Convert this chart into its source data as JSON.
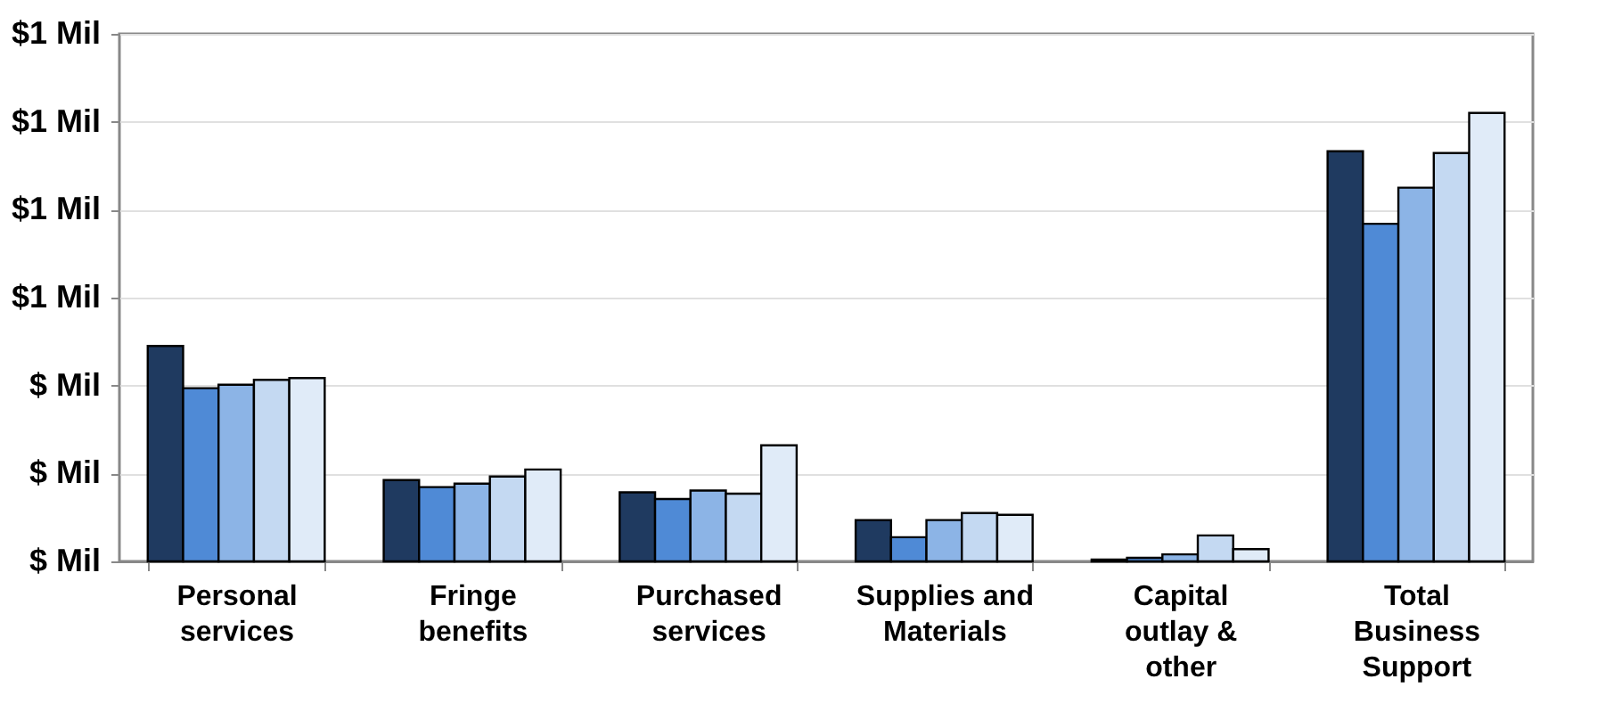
{
  "chart_data": {
    "type": "bar",
    "categories": [
      "Personal services",
      "Fringe benefits",
      "Purchased services",
      "Supplies and Materials",
      "Capital outlay & other",
      "Total Business Support"
    ],
    "series": [
      {
        "color": "#1f3a60",
        "values": [
          0.49,
          0.185,
          0.157,
          0.094,
          0.004,
          0.933
        ]
      },
      {
        "color": "#4f8ad6",
        "values": [
          0.394,
          0.169,
          0.142,
          0.055,
          0.008,
          0.768
        ]
      },
      {
        "color": "#8cb4e6",
        "values": [
          0.402,
          0.177,
          0.161,
          0.094,
          0.016,
          0.85
        ]
      },
      {
        "color": "#c4d9f2",
        "values": [
          0.413,
          0.193,
          0.154,
          0.11,
          0.059,
          0.929
        ]
      },
      {
        "color": "#e0ebf8",
        "values": [
          0.417,
          0.209,
          0.264,
          0.106,
          0.028,
          1.02
        ]
      }
    ],
    "ylim": [
      0,
      1.2
    ],
    "yticks": [
      {
        "value": 0,
        "label": "$ Mil"
      },
      {
        "value": 0.2,
        "label": "$ Mil"
      },
      {
        "value": 0.4,
        "label": "$ Mil"
      },
      {
        "value": 0.6,
        "label": "$1 Mil"
      },
      {
        "value": 0.8,
        "label": "$1 Mil"
      },
      {
        "value": 1.0,
        "label": "$1 Mil"
      },
      {
        "value": 1.2,
        "label": "$1 Mil"
      }
    ],
    "grid": "y"
  }
}
